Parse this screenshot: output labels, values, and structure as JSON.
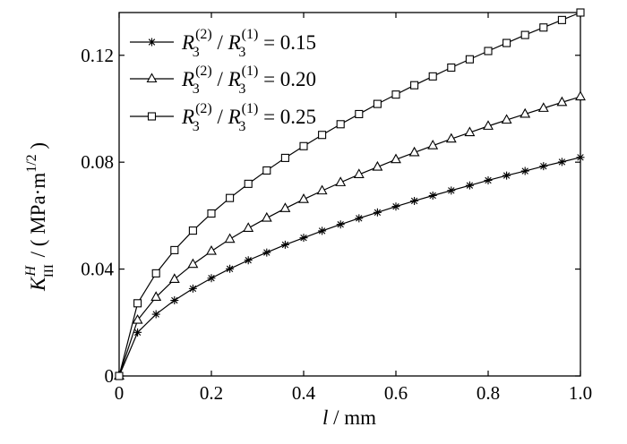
{
  "chart_data": {
    "type": "line",
    "xlabel": {
      "var": "l",
      "sep": " / ",
      "unit": "mm"
    },
    "ylabel": {
      "var": "K",
      "sup": "H",
      "sub": "III",
      "sep": " / ( ",
      "unit": "MPa·m",
      "unit_sup": "1/2",
      "close": " )"
    },
    "xlim": [
      0,
      1.0
    ],
    "ylim": [
      0,
      0.136
    ],
    "xticks": [
      "0",
      "0.2",
      "0.4",
      "0.6",
      "0.8",
      "1.0"
    ],
    "xtick_values": [
      0,
      0.2,
      0.4,
      0.6,
      0.8,
      1.0
    ],
    "yticks": [
      "0",
      "0.04",
      "0.08",
      "0.12"
    ],
    "ytick_values": [
      0,
      0.04,
      0.08,
      0.12
    ],
    "grid": false,
    "legend_position": "top-left",
    "legend_label_parts": {
      "r": "R",
      "sub": "3",
      "sup2": "(2)",
      "slash": " / ",
      "sup1": "(1)",
      "eq": " = "
    },
    "x": [
      0,
      0.04,
      0.08,
      0.12,
      0.16,
      0.2,
      0.24,
      0.28,
      0.32,
      0.36,
      0.4,
      0.44,
      0.48,
      0.52,
      0.56,
      0.6,
      0.64,
      0.68,
      0.72,
      0.76,
      0.8,
      0.84,
      0.88,
      0.92,
      0.96,
      1.0
    ],
    "series": [
      {
        "name": "0.15",
        "marker": "asterisk",
        "values": [
          0,
          0.0163,
          0.0231,
          0.0283,
          0.0327,
          0.0366,
          0.0401,
          0.0433,
          0.0462,
          0.0491,
          0.0517,
          0.0543,
          0.0567,
          0.059,
          0.0612,
          0.0634,
          0.0655,
          0.0675,
          0.0694,
          0.0713,
          0.0732,
          0.075,
          0.0767,
          0.0785,
          0.0801,
          0.0818
        ]
      },
      {
        "name": "0.20",
        "marker": "triangle",
        "values": [
          0,
          0.0209,
          0.0295,
          0.0362,
          0.0418,
          0.0467,
          0.0512,
          0.0553,
          0.0591,
          0.0627,
          0.0661,
          0.0693,
          0.0724,
          0.0754,
          0.0782,
          0.081,
          0.0836,
          0.0862,
          0.0887,
          0.0911,
          0.0935,
          0.0958,
          0.098,
          0.1002,
          0.1024,
          0.1045
        ]
      },
      {
        "name": "0.25",
        "marker": "square",
        "values": [
          0,
          0.0272,
          0.0384,
          0.0471,
          0.0544,
          0.0608,
          0.0666,
          0.0719,
          0.0769,
          0.0816,
          0.086,
          0.0902,
          0.0942,
          0.098,
          0.1018,
          0.1053,
          0.1088,
          0.1121,
          0.1154,
          0.1185,
          0.1216,
          0.1246,
          0.1276,
          0.1304,
          0.1332,
          0.136
        ]
      }
    ]
  }
}
